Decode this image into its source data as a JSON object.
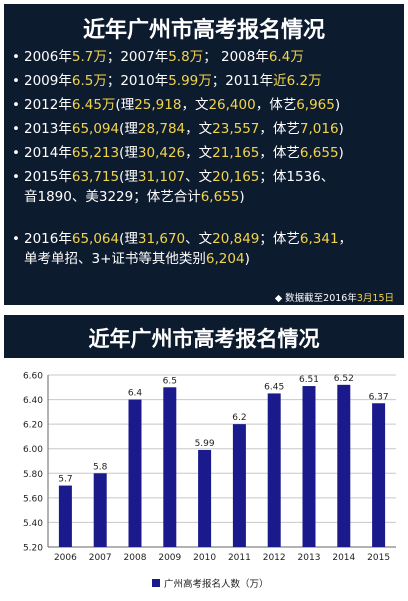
{
  "top": {
    "title": "近年广州市高考报名情况",
    "lines": [
      {
        "parts": [
          [
            "2006年",
            "w"
          ],
          [
            "5.7万",
            "y"
          ],
          [
            "；2007年",
            "w"
          ],
          [
            "5.8万",
            "y"
          ],
          [
            "；  2008年",
            "w"
          ],
          [
            "6.4万",
            "y"
          ]
        ]
      },
      {
        "parts": [
          [
            "2009年",
            "w"
          ],
          [
            "6.5万",
            "y"
          ],
          [
            "；2010年",
            "w"
          ],
          [
            "5.99万",
            "y"
          ],
          [
            "；2011年",
            "w"
          ],
          [
            "近6.2万",
            "y"
          ]
        ]
      },
      {
        "parts": [
          [
            "2012年",
            "w"
          ],
          [
            "6.45万",
            "y"
          ],
          [
            "(理",
            "w"
          ],
          [
            "25,918",
            "y"
          ],
          [
            "，文",
            "w"
          ],
          [
            "26,400",
            "y"
          ],
          [
            "，体艺",
            "w"
          ],
          [
            "6,965",
            "y"
          ],
          [
            ")",
            "w"
          ]
        ]
      },
      {
        "parts": [
          [
            "2013年",
            "w"
          ],
          [
            "65,094",
            "y"
          ],
          [
            "(理",
            "w"
          ],
          [
            "28,784",
            "y"
          ],
          [
            "，文",
            "w"
          ],
          [
            "23,557",
            "y"
          ],
          [
            "，体艺",
            "w"
          ],
          [
            "7,016",
            "y"
          ],
          [
            ")",
            "w"
          ]
        ]
      },
      {
        "parts": [
          [
            "2014年",
            "w"
          ],
          [
            "65,213",
            "y"
          ],
          [
            "(理",
            "w"
          ],
          [
            "30,426",
            "y"
          ],
          [
            "，文",
            "w"
          ],
          [
            "21,165",
            "y"
          ],
          [
            "，体艺",
            "w"
          ],
          [
            "6,655",
            "y"
          ],
          [
            ")",
            "w"
          ]
        ]
      },
      {
        "parts": [
          [
            "2015年",
            "w"
          ],
          [
            "63,715",
            "y"
          ],
          [
            "(理",
            "w"
          ],
          [
            "31,107",
            "y"
          ],
          [
            "、文",
            "w"
          ],
          [
            "20,165",
            "y"
          ],
          [
            "；体1536、",
            "w"
          ]
        ]
      },
      {
        "parts": [
          [
            "音1890、美3229；体艺合计",
            "w"
          ],
          [
            "6,655",
            "y"
          ],
          [
            ")",
            "w"
          ]
        ],
        "indent": true
      },
      {
        "parts": [
          [
            "2016年",
            "w"
          ],
          [
            "65,064",
            "y"
          ],
          [
            "(理",
            "w"
          ],
          [
            "31,670",
            "y"
          ],
          [
            "、文",
            "w"
          ],
          [
            "20,849",
            "y"
          ],
          [
            "；体艺",
            "w"
          ],
          [
            "6,341",
            "y"
          ],
          [
            "，",
            "w"
          ]
        ]
      },
      {
        "parts": [
          [
            "单考单招、3+证书等其他类别",
            "w"
          ],
          [
            "6,204",
            "y"
          ],
          [
            ")",
            "w"
          ]
        ],
        "indent": true
      }
    ],
    "footnote_prefix": "◆ 数据截至2016年",
    "footnote_date": "3月15日"
  },
  "bottom": {
    "title": "近年广州市高考报名情况"
  },
  "colors": {
    "panel_bg": "#0d1b2f",
    "highlight": "#f2d44a",
    "bar": "#1a1a8c"
  },
  "chart_data": {
    "type": "bar",
    "categories": [
      "2006",
      "2007",
      "2008",
      "2009",
      "2010",
      "2011",
      "2012",
      "2013",
      "2014",
      "2015"
    ],
    "series": [
      {
        "name": "广州高考报名人数（万）",
        "values": [
          5.7,
          5.8,
          6.4,
          6.5,
          5.99,
          6.2,
          6.45,
          6.51,
          6.52,
          6.37
        ],
        "labels": [
          "5.7",
          "5.8",
          "6.4",
          "6.5",
          "5.99",
          "6.2",
          "6.45",
          "6.51",
          "6.52",
          "6.37"
        ]
      }
    ],
    "ylim": [
      5.2,
      6.6
    ],
    "yticks": [
      "5.20",
      "5.40",
      "5.60",
      "5.80",
      "6.00",
      "6.20",
      "6.40",
      "6.60"
    ],
    "grid": true,
    "legend_position": "bottom"
  }
}
